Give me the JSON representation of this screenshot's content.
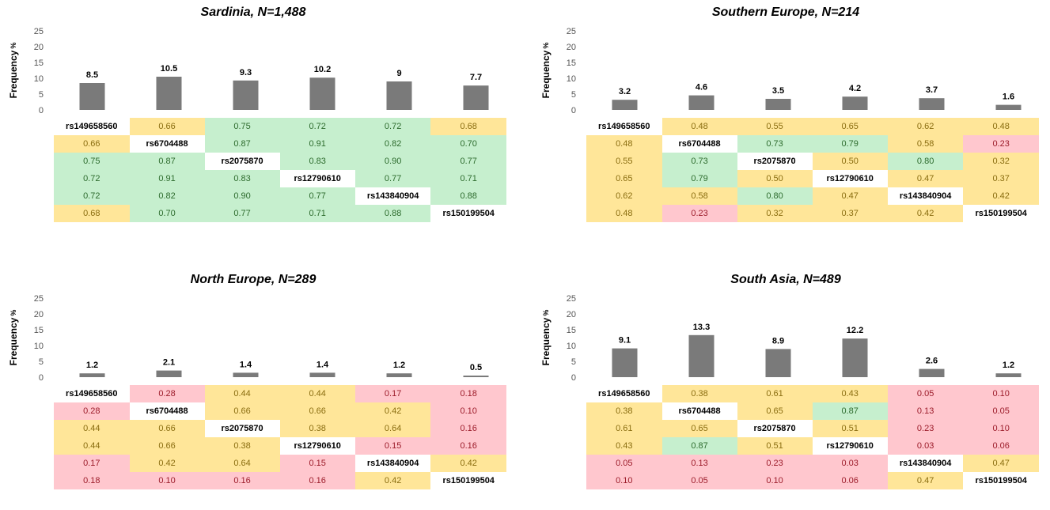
{
  "y_axis_label": "Frequency",
  "y_axis_unit": "%",
  "snps": [
    "rs149658560",
    "rs6704488",
    "rs2075870",
    "rs12790610",
    "rs143840904",
    "rs150199504"
  ],
  "colors": {
    "bar": "#7a7a7a",
    "high": "#c6efce",
    "mid": "#ffe699",
    "low": "#ffc7ce"
  },
  "chart_data": [
    {
      "type": "bar",
      "title": "Sardinia, N=1,488",
      "categories": [
        "rs149658560",
        "rs6704488",
        "rs2075870",
        "rs12790610",
        "rs143840904",
        "rs150199504"
      ],
      "values": [
        8.5,
        10.5,
        9.3,
        10.2,
        9,
        7.7
      ],
      "value_labels": [
        "8.5",
        "10.5",
        "9.3",
        "10.2",
        "9",
        "7.7"
      ],
      "ylabel": "Frequency %",
      "yticks": [
        "0",
        "5",
        "10",
        "15",
        "20",
        "25"
      ],
      "ylim": [
        0,
        25
      ],
      "matrix": [
        [
          null,
          "0.66",
          "0.75",
          "0.72",
          "0.72",
          "0.68"
        ],
        [
          "0.66",
          null,
          "0.87",
          "0.91",
          "0.82",
          "0.70"
        ],
        [
          "0.75",
          "0.87",
          null,
          "0.83",
          "0.90",
          "0.77"
        ],
        [
          "0.72",
          "0.91",
          "0.83",
          null,
          "0.77",
          "0.71"
        ],
        [
          "0.72",
          "0.82",
          "0.90",
          "0.77",
          null,
          "0.88"
        ],
        [
          "0.68",
          "0.70",
          "0.77",
          "0.71",
          "0.88",
          null
        ]
      ]
    },
    {
      "type": "bar",
      "title": "Southern Europe, N=214",
      "categories": [
        "rs149658560",
        "rs6704488",
        "rs2075870",
        "rs12790610",
        "rs143840904",
        "rs150199504"
      ],
      "values": [
        3.2,
        4.6,
        3.5,
        4.2,
        3.7,
        1.6
      ],
      "value_labels": [
        "3.2",
        "4.6",
        "3.5",
        "4.2",
        "3.7",
        "1.6"
      ],
      "ylabel": "Frequency %",
      "yticks": [
        "0",
        "5",
        "10",
        "15",
        "20",
        "25"
      ],
      "ylim": [
        0,
        25
      ],
      "matrix": [
        [
          null,
          "0.48",
          "0.55",
          "0.65",
          "0.62",
          "0.48"
        ],
        [
          "0.48",
          null,
          "0.73",
          "0.79",
          "0.58",
          "0.23"
        ],
        [
          "0.55",
          "0.73",
          null,
          "0.50",
          "0.80",
          "0.32"
        ],
        [
          "0.65",
          "0.79",
          "0.50",
          null,
          "0.47",
          "0.37"
        ],
        [
          "0.62",
          "0.58",
          "0.80",
          "0.47",
          null,
          "0.42"
        ],
        [
          "0.48",
          "0.23",
          "0.32",
          "0.37",
          "0.42",
          null
        ]
      ]
    },
    {
      "type": "bar",
      "title": "North Europe, N=289",
      "categories": [
        "rs149658560",
        "rs6704488",
        "rs2075870",
        "rs12790610",
        "rs143840904",
        "rs150199504"
      ],
      "values": [
        1.2,
        2.1,
        1.4,
        1.4,
        1.2,
        0.5
      ],
      "value_labels": [
        "1.2",
        "2.1",
        "1.4",
        "1.4",
        "1.2",
        "0.5"
      ],
      "ylabel": "Frequency %",
      "yticks": [
        "0",
        "5",
        "10",
        "15",
        "20",
        "25"
      ],
      "ylim": [
        0,
        25
      ],
      "matrix": [
        [
          null,
          "0.28",
          "0.44",
          "0.44",
          "0.17",
          "0.18"
        ],
        [
          "0.28",
          null,
          "0.66",
          "0.66",
          "0.42",
          "0.10"
        ],
        [
          "0.44",
          "0.66",
          null,
          "0.38",
          "0.64",
          "0.16"
        ],
        [
          "0.44",
          "0.66",
          "0.38",
          null,
          "0.15",
          "0.16"
        ],
        [
          "0.17",
          "0.42",
          "0.64",
          "0.15",
          null,
          "0.42"
        ],
        [
          "0.18",
          "0.10",
          "0.16",
          "0.16",
          "0.42",
          null
        ]
      ]
    },
    {
      "type": "bar",
      "title": "South Asia, N=489",
      "categories": [
        "rs149658560",
        "rs6704488",
        "rs2075870",
        "rs12790610",
        "rs143840904",
        "rs150199504"
      ],
      "values": [
        9.1,
        13.3,
        8.9,
        12.2,
        2.6,
        1.2
      ],
      "value_labels": [
        "9.1",
        "13.3",
        "8.9",
        "12.2",
        "2.6",
        "1.2"
      ],
      "ylabel": "Frequency %",
      "yticks": [
        "0",
        "5",
        "10",
        "15",
        "20",
        "25"
      ],
      "ylim": [
        0,
        25
      ],
      "matrix": [
        [
          null,
          "0.38",
          "0.61",
          "0.43",
          "0.05",
          "0.10"
        ],
        [
          "0.38",
          null,
          "0.65",
          "0.87",
          "0.13",
          "0.05"
        ],
        [
          "0.61",
          "0.65",
          null,
          "0.51",
          "0.23",
          "0.10"
        ],
        [
          "0.43",
          "0.87",
          "0.51",
          null,
          "0.03",
          "0.06"
        ],
        [
          "0.05",
          "0.13",
          "0.23",
          "0.03",
          null,
          "0.47"
        ],
        [
          "0.10",
          "0.05",
          "0.10",
          "0.06",
          "0.47",
          null
        ]
      ]
    }
  ]
}
